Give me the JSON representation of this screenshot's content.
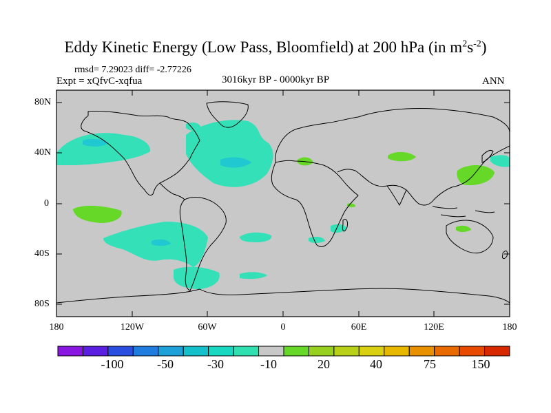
{
  "title": {
    "main": "Eddy Kinetic Energy (Low Pass, Bloomfield) at 200 hPa (in m",
    "sup1": "2",
    "mid": "s",
    "sup2": "-2",
    "end": ")"
  },
  "stats": "rmsd= 7.29023 diff= -2.77226",
  "expt": "Expt = xQfvC-xqfua",
  "period": "3016kyr BP - 0000kyr BP",
  "season": "ANN",
  "lat_labels": [
    "80N",
    "40N",
    "0",
    "40S",
    "80S"
  ],
  "lon_labels": [
    "180",
    "120W",
    "60W",
    "0",
    "60E",
    "120E",
    "180"
  ],
  "colorbar": {
    "colors": [
      "#8a16e2",
      "#5a1fe0",
      "#2a4fe0",
      "#1f7de0",
      "#1ea0d8",
      "#14c0cc",
      "#18d8c2",
      "#30e0b0",
      "#c8c8c8",
      "#66d828",
      "#98d020",
      "#b8d018",
      "#d8d010",
      "#e8b800",
      "#e89000",
      "#e86a00",
      "#e84a00",
      "#d82800"
    ],
    "labels": [
      "-100",
      "-50",
      "-30",
      "-10",
      "20",
      "40",
      "75",
      "150"
    ]
  },
  "colors": {
    "ocean_background": "#c8c8c8",
    "negative_anomaly": "#33e0b8",
    "negative_anomaly_strong": "#20c8d2",
    "positive_anomaly": "#66d828",
    "coastline": "#000000"
  }
}
